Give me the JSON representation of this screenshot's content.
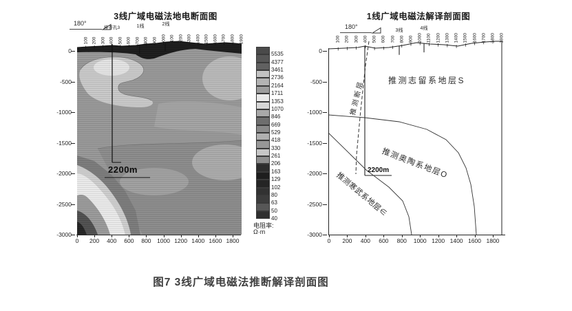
{
  "caption": "图7 3线广域电磁法推断解译剖面图",
  "left_panel": {
    "title": "3线广域电磁法地电断面图",
    "bearing_label": "180°",
    "borehole_name": "排齐孔3",
    "borehole_depth": "2200m",
    "line_marker_1": "1线",
    "line_marker_2": "2线",
    "stations": [
      "100",
      "200",
      "300",
      "400",
      "500",
      "600",
      "700",
      "800",
      "900",
      "1000",
      "1100",
      "1200",
      "1300",
      "1400",
      "1500",
      "1600",
      "1700",
      "1800",
      "1900"
    ],
    "x_ticks": [
      "0",
      "200",
      "400",
      "600",
      "800",
      "1000",
      "1200",
      "1400",
      "1600",
      "1800"
    ],
    "y_ticks": [
      "0",
      "-500",
      "-1000",
      "-1500",
      "-2000",
      "-2500",
      "-3000"
    ],
    "colorbar": {
      "values": [
        "5535",
        "4377",
        "3461",
        "2736",
        "2164",
        "1711",
        "1353",
        "1070",
        "846",
        "669",
        "529",
        "418",
        "330",
        "261",
        "206",
        "163",
        "129",
        "102",
        "80",
        "63",
        "50",
        "40"
      ],
      "colors": [
        "#4a4a4a",
        "#565656",
        "#616161",
        "#c3c3c3",
        "#b3b3b3",
        "#9d9d9d",
        "#eaeaea",
        "#d7d7d7",
        "#a8a8a8",
        "#6e6e6e",
        "#8a8a8a",
        "#b0b0b0",
        "#979797",
        "#c7c7c7",
        "#8e8e8e",
        "#2d2d2d",
        "#1e1e1e",
        "#252525",
        "#323232",
        "#3c3c3c",
        "#575757",
        "#2f2f2f"
      ],
      "unit_line1": "电阻率:",
      "unit_line2": "Ω·m"
    }
  },
  "right_panel": {
    "title": "1线广域电磁法解译剖面图",
    "bearing_label": "180°",
    "borehole_depth": "2200m",
    "fault_label": "推测断层",
    "layer_silurian": "推测志留系地层S",
    "layer_ordovician": "推测奥陶系地层O",
    "layer_cambrian": "推测寒武系地层∈",
    "line_marker_1": "3线",
    "line_marker_2": "4线",
    "stations": [
      "100",
      "200",
      "300",
      "400",
      "500",
      "600",
      "700",
      "800",
      "900",
      "1000",
      "1100",
      "1200",
      "1300",
      "1400",
      "1500",
      "1600",
      "1700",
      "1800",
      "1900"
    ],
    "x_ticks": [
      "0",
      "200",
      "400",
      "600",
      "800",
      "1000",
      "1200",
      "1400",
      "1600",
      "1800"
    ],
    "y_ticks": [
      "0",
      "-500",
      "-1000",
      "-1500",
      "-2000",
      "-2500",
      "-3000"
    ]
  },
  "chart_data": [
    {
      "type": "heatmap",
      "title": "3线广域电磁法地电断面图",
      "xlabel_stations_range": [
        0,
        1900
      ],
      "depth_range": [
        0,
        -3000
      ],
      "x_ticks": [
        0,
        200,
        400,
        600,
        800,
        1000,
        1200,
        1400,
        1600,
        1800
      ],
      "y_ticks": [
        0,
        -500,
        -1000,
        -1500,
        -2000,
        -2500,
        -3000
      ],
      "colorbar_unit": "电阻率: Ω·m",
      "colorbar_values": [
        5535,
        4377,
        3461,
        2736,
        2164,
        1711,
        1353,
        1070,
        846,
        669,
        529,
        418,
        330,
        261,
        206,
        163,
        129,
        102,
        80,
        63,
        50,
        40
      ],
      "borehole": {
        "station": 400,
        "depth_label": "2200m",
        "name": "排齐孔3"
      },
      "line_crossings": [
        {
          "label": "1线",
          "station": 720
        },
        {
          "label": "2线",
          "station": 1020
        }
      ]
    },
    {
      "type": "line",
      "title": "1线广域电磁法解译剖面图",
      "xlabel_stations_range": [
        0,
        1900
      ],
      "depth_range": [
        0,
        -3000
      ],
      "annotations": [
        "推测志留系地层S",
        "推测奥陶系地层O",
        "推测寒武系地层∈",
        "推测断层",
        "2200m"
      ],
      "series": [
        {
          "name": "silurian_ordovician_boundary",
          "points": [
            [
              0,
              -1050
            ],
            [
              400,
              -1090
            ],
            [
              770,
              -1150
            ],
            [
              1070,
              -1270
            ],
            [
              1290,
              -1440
            ],
            [
              1420,
              -1650
            ],
            [
              1500,
              -1900
            ],
            [
              1560,
              -2170
            ],
            [
              1600,
              -2530
            ],
            [
              1620,
              -3000
            ]
          ]
        },
        {
          "name": "ordovician_cambrian_boundary",
          "points": [
            [
              0,
              -1340
            ],
            [
              410,
              -1940
            ],
            [
              660,
              -2230
            ],
            [
              810,
              -2450
            ],
            [
              880,
              -2710
            ],
            [
              910,
              -3000
            ]
          ]
        },
        {
          "name": "inferred_fault_dashed",
          "points": [
            [
              440,
              150
            ],
            [
              430,
              -270
            ],
            [
              380,
              -1000
            ],
            [
              335,
              -1730
            ],
            [
              325,
              -2030
            ]
          ]
        }
      ],
      "borehole": {
        "station": 400,
        "depth_label": "2200m"
      },
      "line_crossings": [
        {
          "label": "3线",
          "station": 770
        },
        {
          "label": "4线",
          "station": 1045
        }
      ]
    }
  ]
}
